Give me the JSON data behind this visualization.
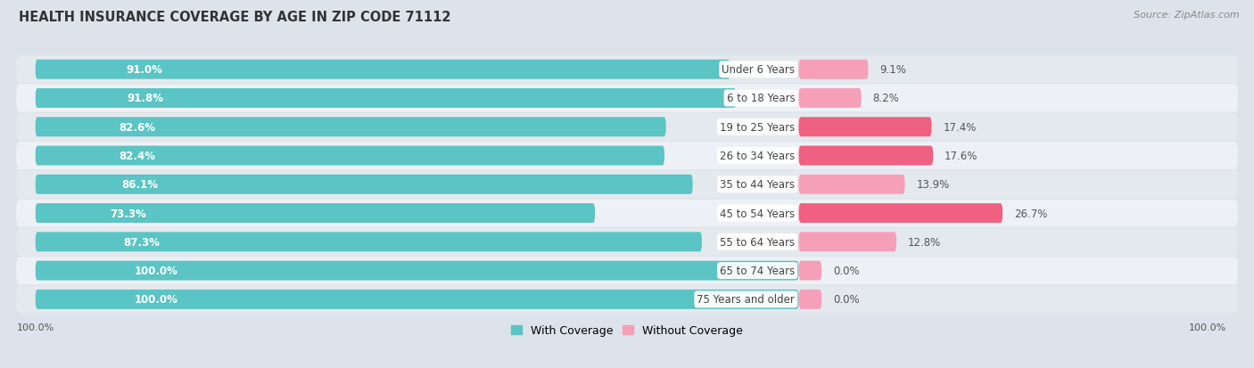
{
  "title": "HEALTH INSURANCE COVERAGE BY AGE IN ZIP CODE 71112",
  "source": "Source: ZipAtlas.com",
  "categories": [
    "Under 6 Years",
    "6 to 18 Years",
    "19 to 25 Years",
    "26 to 34 Years",
    "35 to 44 Years",
    "45 to 54 Years",
    "55 to 64 Years",
    "65 to 74 Years",
    "75 Years and older"
  ],
  "with_coverage": [
    91.0,
    91.8,
    82.6,
    82.4,
    86.1,
    73.3,
    87.3,
    100.0,
    100.0
  ],
  "without_coverage": [
    9.1,
    8.2,
    17.4,
    17.6,
    13.9,
    26.7,
    12.8,
    0.0,
    0.0
  ],
  "without_coverage_display": [
    9.1,
    8.2,
    17.4,
    17.6,
    13.9,
    26.7,
    12.8,
    3.0,
    3.0
  ],
  "color_with": "#5bc4c4",
  "color_without_strong": "#f06080",
  "color_without_light": "#f5a0b8",
  "row_bg_dark": "#e4e9ee",
  "row_bg_light": "#edf1f5",
  "title_fontsize": 10.5,
  "bar_label_fontsize": 8.5,
  "cat_label_fontsize": 8.5,
  "legend_fontsize": 9,
  "axis_label_fontsize": 8,
  "source_fontsize": 8
}
